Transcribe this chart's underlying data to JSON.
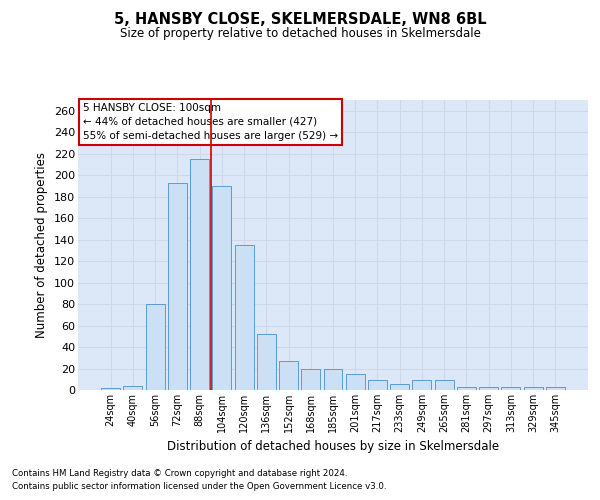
{
  "title": "5, HANSBY CLOSE, SKELMERSDALE, WN8 6BL",
  "subtitle": "Size of property relative to detached houses in Skelmersdale",
  "xlabel": "Distribution of detached houses by size in Skelmersdale",
  "ylabel": "Number of detached properties",
  "footnote1": "Contains HM Land Registry data © Crown copyright and database right 2024.",
  "footnote2": "Contains public sector information licensed under the Open Government Licence v3.0.",
  "categories": [
    "24sqm",
    "40sqm",
    "56sqm",
    "72sqm",
    "88sqm",
    "104sqm",
    "120sqm",
    "136sqm",
    "152sqm",
    "168sqm",
    "185sqm",
    "201sqm",
    "217sqm",
    "233sqm",
    "249sqm",
    "265sqm",
    "281sqm",
    "297sqm",
    "313sqm",
    "329sqm",
    "345sqm"
  ],
  "values": [
    2,
    4,
    80,
    193,
    215,
    190,
    135,
    52,
    27,
    20,
    20,
    15,
    9,
    6,
    9,
    9,
    3,
    3,
    3,
    3,
    3
  ],
  "bar_color": "#cce0f5",
  "bar_edge_color": "#5b9bd5",
  "grid_color": "#d0d8e8",
  "background_color": "#dce8f8",
  "marker_line_color": "#cc0000",
  "annotation_line1": "5 HANSBY CLOSE: 100sqm",
  "annotation_line2": "← 44% of detached houses are smaller (427)",
  "annotation_line3": "55% of semi-detached houses are larger (529) →",
  "annotation_box_color": "#ffffff",
  "annotation_box_edge": "#cc0000",
  "ylim": [
    0,
    270
  ],
  "yticks": [
    0,
    20,
    40,
    60,
    80,
    100,
    120,
    140,
    160,
    180,
    200,
    220,
    240,
    260
  ]
}
